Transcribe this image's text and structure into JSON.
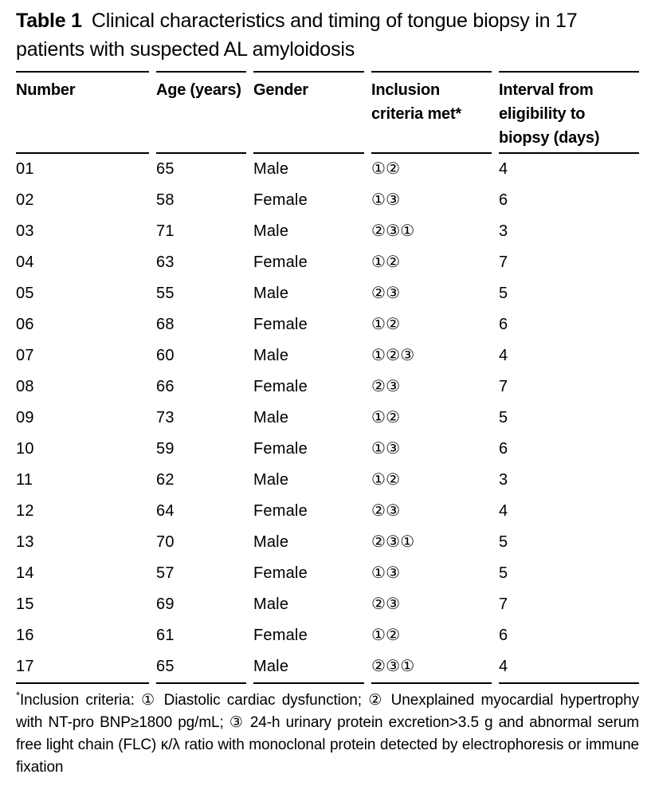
{
  "caption": {
    "label": "Table 1",
    "text": "Clinical characteristics and timing of tongue biopsy in 17 patients with suspected AL amyloidosis"
  },
  "table": {
    "columns": [
      "Number",
      "Age (years)",
      "Gender",
      "Inclusion criteria met*",
      "Interval from eligibility to biopsy (days)"
    ],
    "rows": [
      [
        "01",
        "65",
        "Male",
        "①②",
        "4"
      ],
      [
        "02",
        "58",
        "Female",
        "①③",
        "6"
      ],
      [
        "03",
        "71",
        "Male",
        "②③①",
        "3"
      ],
      [
        "04",
        "63",
        "Female",
        "①②",
        "7"
      ],
      [
        "05",
        "55",
        "Male",
        "②③",
        "5"
      ],
      [
        "06",
        "68",
        "Female",
        "①②",
        "6"
      ],
      [
        "07",
        "60",
        "Male",
        "①②③",
        "4"
      ],
      [
        "08",
        "66",
        "Female",
        "②③",
        "7"
      ],
      [
        "09",
        "73",
        "Male",
        "①②",
        "5"
      ],
      [
        "10",
        "59",
        "Female",
        "①③",
        "6"
      ],
      [
        "11",
        "62",
        "Male",
        "①②",
        "3"
      ],
      [
        "12",
        "64",
        "Female",
        "②③",
        "4"
      ],
      [
        "13",
        "70",
        "Male",
        "②③①",
        "5"
      ],
      [
        "14",
        "57",
        "Female",
        "①③",
        "5"
      ],
      [
        "15",
        "69",
        "Male",
        "②③",
        "7"
      ],
      [
        "16",
        "61",
        "Female",
        "①②",
        "6"
      ],
      [
        "17",
        "65",
        "Male",
        "②③①",
        "4"
      ]
    ]
  },
  "footnote": {
    "marker": "*",
    "text": "Inclusion criteria: ① Diastolic cardiac dysfunction; ② Unexplained myocardial hypertrophy with NT-pro BNP≥1800 pg/mL; ③ 24-h urinary protein excretion>3.5 g and abnormal serum free light chain (FLC) κ/λ ratio with monoclonal protein detected by electrophoresis or immune fixation"
  },
  "colors": {
    "text": "#000000",
    "rule": "#000000",
    "background": "#ffffff"
  }
}
